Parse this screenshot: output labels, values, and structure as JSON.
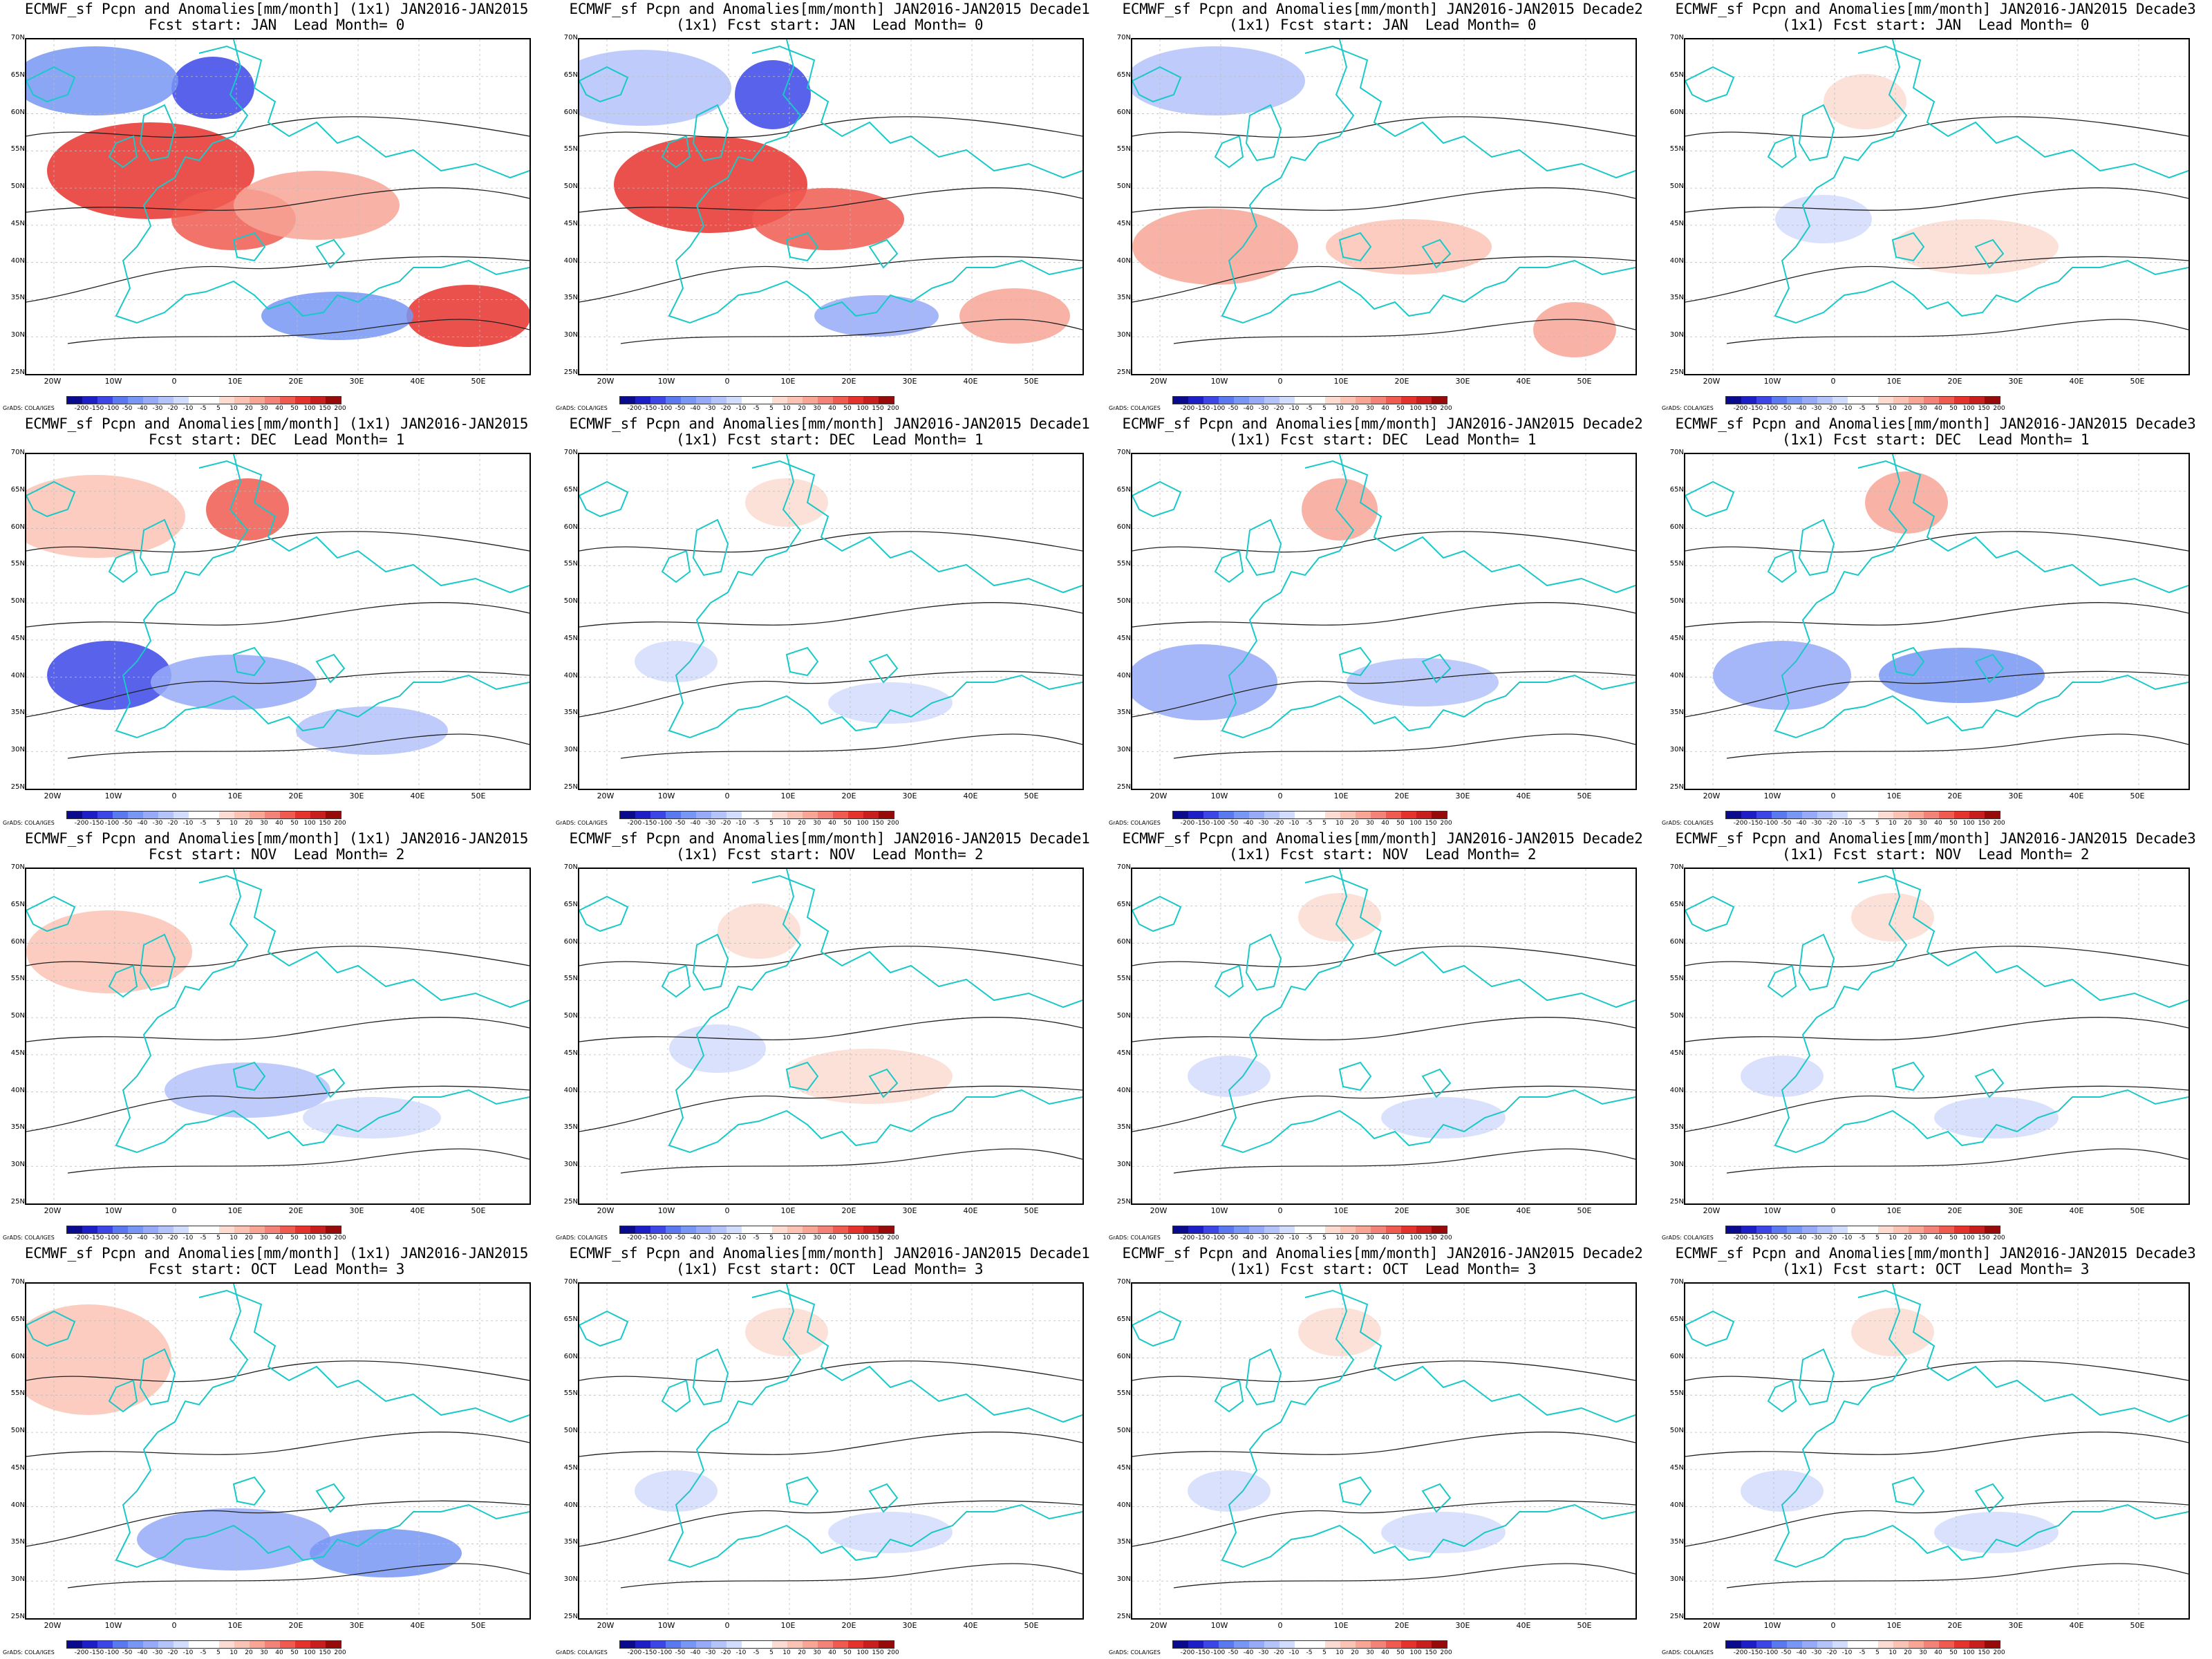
{
  "panels": [
    {
      "title1": "ECMWF_sf Pcpn and Anomalies[mm/month] (1x1) JAN2016-JAN2015",
      "title2": "Fcst start: JAN  Lead Month= 0",
      "pattern": "strong_jan"
    },
    {
      "title1": "ECMWF_sf Pcpn and Anomalies[mm/month] JAN2016-JAN2015 Decade1",
      "title2": "(1x1) Fcst start: JAN  Lead Month= 0",
      "pattern": "strong_jan_d1"
    },
    {
      "title1": "ECMWF_sf Pcpn and Anomalies[mm/month] JAN2016-JAN2015 Decade2",
      "title2": "(1x1) Fcst start: JAN  Lead Month= 0",
      "pattern": "mid_jan"
    },
    {
      "title1": "ECMWF_sf Pcpn and Anomalies[mm/month] JAN2016-JAN2015 Decade3",
      "title2": "(1x1) Fcst start: JAN  Lead Month= 0",
      "pattern": "weak_red"
    },
    {
      "title1": "ECMWF_sf Pcpn and Anomalies[mm/month] (1x1) JAN2016-JAN2015",
      "title2": "Fcst start: DEC  Lead Month= 1",
      "pattern": "dec_month"
    },
    {
      "title1": "ECMWF_sf Pcpn and Anomalies[mm/month] JAN2016-JAN2015 Decade1",
      "title2": "(1x1) Fcst start: DEC  Lead Month= 1",
      "pattern": "weak"
    },
    {
      "title1": "ECMWF_sf Pcpn and Anomalies[mm/month] JAN2016-JAN2015 Decade2",
      "title2": "(1x1) Fcst start: DEC  Lead Month= 1",
      "pattern": "dec_d2"
    },
    {
      "title1": "ECMWF_sf Pcpn and Anomalies[mm/month] JAN2016-JAN2015 Decade3",
      "title2": "(1x1) Fcst start: DEC  Lead Month= 1",
      "pattern": "dec_d3"
    },
    {
      "title1": "ECMWF_sf Pcpn and Anomalies[mm/month] (1x1) JAN2016-JAN2015",
      "title2": "Fcst start: NOV  Lead Month= 2",
      "pattern": "nov_month"
    },
    {
      "title1": "ECMWF_sf Pcpn and Anomalies[mm/month] JAN2016-JAN2015 Decade1",
      "title2": "(1x1) Fcst start: NOV  Lead Month= 2",
      "pattern": "weak_red"
    },
    {
      "title1": "ECMWF_sf Pcpn and Anomalies[mm/month] JAN2016-JAN2015 Decade2",
      "title2": "(1x1) Fcst start: NOV  Lead Month= 2",
      "pattern": "weak"
    },
    {
      "title1": "ECMWF_sf Pcpn and Anomalies[mm/month] JAN2016-JAN2015 Decade3",
      "title2": "(1x1) Fcst start: NOV  Lead Month= 2",
      "pattern": "weak"
    },
    {
      "title1": "ECMWF_sf Pcpn and Anomalies[mm/month] (1x1) JAN2016-JAN2015",
      "title2": "Fcst start: OCT  Lead Month= 3",
      "pattern": "oct_month"
    },
    {
      "title1": "ECMWF_sf Pcpn and Anomalies[mm/month] JAN2016-JAN2015 Decade1",
      "title2": "(1x1) Fcst start: OCT  Lead Month= 3",
      "pattern": "weak"
    },
    {
      "title1": "ECMWF_sf Pcpn and Anomalies[mm/month] JAN2016-JAN2015 Decade2",
      "title2": "(1x1) Fcst start: OCT  Lead Month= 3",
      "pattern": "weak"
    },
    {
      "title1": "ECMWF_sf Pcpn and Anomalies[mm/month] JAN2016-JAN2015 Decade3",
      "title2": "(1x1) Fcst start: OCT  Lead Month= 3",
      "pattern": "weak"
    }
  ],
  "lat_labels": [
    "70N",
    "65N",
    "60N",
    "55N",
    "50N",
    "45N",
    "40N",
    "35N",
    "30N",
    "25N"
  ],
  "lon_labels": [
    "20W",
    "10W",
    "0",
    "10E",
    "20E",
    "30E",
    "40E",
    "50E"
  ],
  "colorbar_labels": [
    "-200",
    "-150",
    "-100",
    "-50",
    "-40",
    "-30",
    "-20",
    "-10",
    "-5",
    "5",
    "10",
    "20",
    "30",
    "40",
    "50",
    "100",
    "150",
    "200"
  ],
  "colorbar_colors": [
    "#0a0a8c",
    "#1e1ec8",
    "#3c46e6",
    "#5a78f0",
    "#7896f5",
    "#96aaf8",
    "#b4c3fa",
    "#d2dcfc",
    "#ffffff",
    "#ffffff",
    "#fcdcd2",
    "#fac3b4",
    "#f8a596",
    "#f58278",
    "#f05a50",
    "#e6322d",
    "#c81e1e",
    "#960a0a"
  ],
  "credit": "GrADS: COLA/IGES",
  "colors": {
    "land_outline": "#19c8c8",
    "contour": "#222222",
    "positive": "#e6322d",
    "negative": "#3c46e6"
  }
}
